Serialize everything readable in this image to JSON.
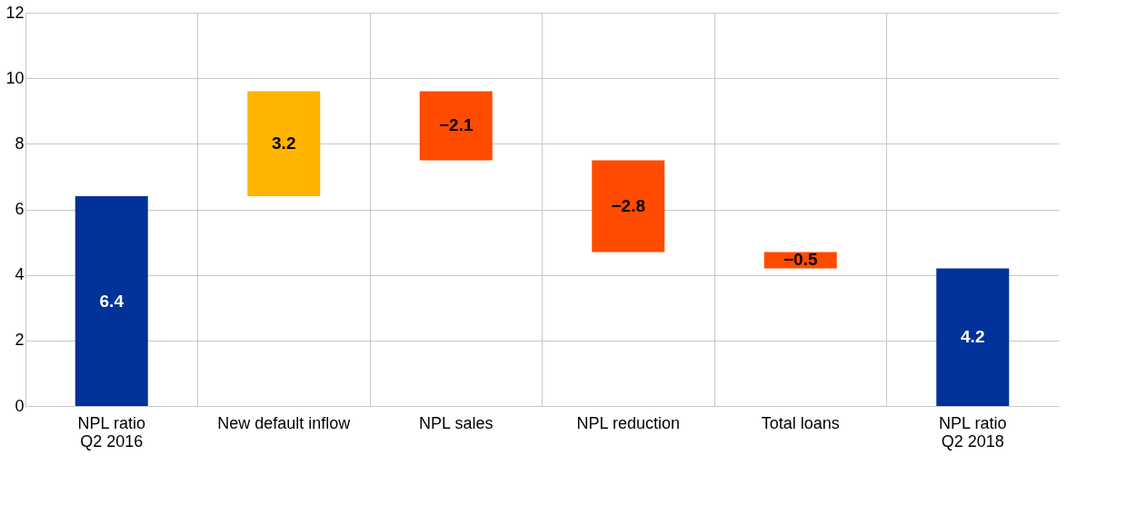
{
  "chart_data": {
    "type": "bar",
    "categories": [
      "NPL ratio\nQ2 2016",
      "New default inflow",
      "NPL sales",
      "NPL reduction",
      "Total loans",
      "NPL ratio\nQ2 2018"
    ],
    "values": [
      6.4,
      3.2,
      -2.1,
      -2.8,
      -0.5,
      4.2
    ],
    "base": [
      0,
      6.4,
      9.6,
      7.5,
      4.7,
      0
    ],
    "colors": [
      "#003299",
      "#ffb400",
      "#ff4b00",
      "#ff4b00",
      "#ff4b00",
      "#003299"
    ],
    "value_labels": [
      "6.4",
      "3.2",
      "−2.1",
      "−2.8",
      "−0.5",
      "4.2"
    ],
    "ylim": [
      0,
      12
    ],
    "yticks": [
      0,
      2,
      4,
      6,
      8,
      10,
      12
    ],
    "grid": true
  }
}
